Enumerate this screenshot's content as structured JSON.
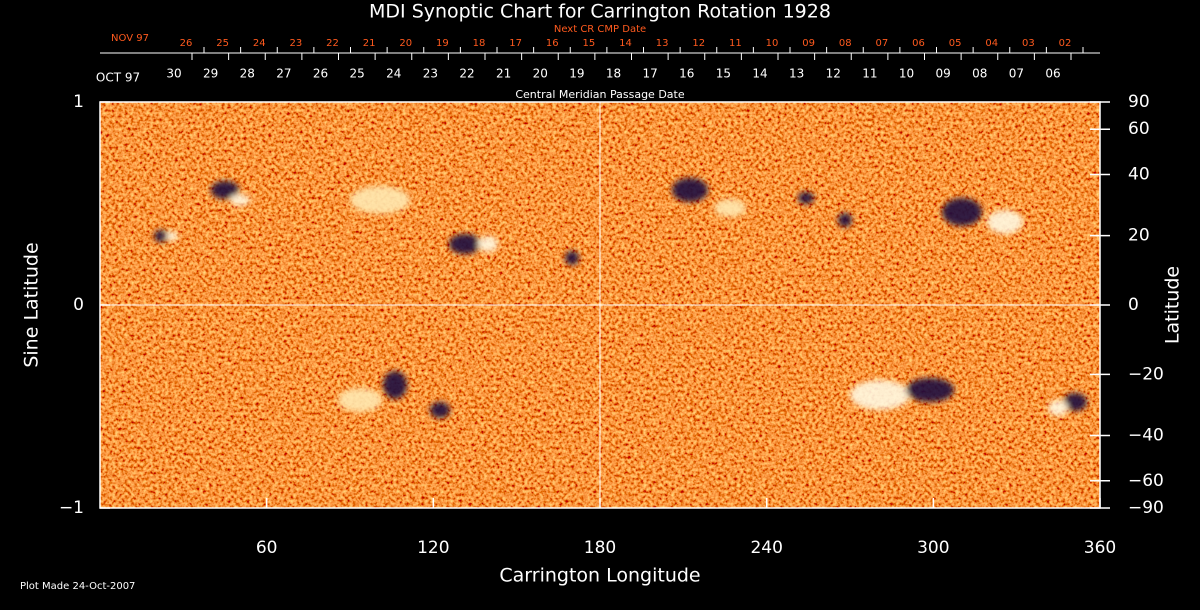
{
  "chart_data": {
    "type": "synoptic-map",
    "title": "MDI Synoptic Chart for Carrington Rotation 1928",
    "top_axis_label": "Next CR CMP Date",
    "top_axis_month": "NOV 97",
    "top_dates": [
      "26",
      "25",
      "24",
      "23",
      "22",
      "21",
      "20",
      "19",
      "18",
      "17",
      "16",
      "15",
      "14",
      "13",
      "12",
      "11",
      "10",
      "09",
      "08",
      "07",
      "06",
      "05",
      "04",
      "03",
      "02"
    ],
    "second_axis_label": "Central Meridian Passage Date",
    "second_axis_month": "OCT 97",
    "second_dates": [
      "30",
      "29",
      "28",
      "27",
      "26",
      "25",
      "24",
      "23",
      "22",
      "21",
      "20",
      "19",
      "18",
      "17",
      "16",
      "15",
      "14",
      "13",
      "12",
      "11",
      "10",
      "09",
      "08",
      "07",
      "06"
    ],
    "xlabel": "Carrington Longitude",
    "ylabel": "Sine Latitude",
    "y2label": "Latitude",
    "xlim": [
      0,
      360
    ],
    "xticks": [
      60,
      120,
      180,
      240,
      300,
      360
    ],
    "ylim": [
      -1,
      1
    ],
    "yticks": [
      {
        "value": -1,
        "label": "−1"
      },
      0,
      1
    ],
    "y2lim": [
      -90,
      90
    ],
    "y2ticks": [
      90,
      60,
      40,
      20,
      0,
      {
        "value": -20,
        "label": "−20"
      },
      {
        "value": -40,
        "label": "−40"
      },
      {
        "value": -60,
        "label": "−60"
      },
      {
        "value": -90,
        "label": "−90"
      }
    ],
    "footer": "Plot Made 24-Oct-2007"
  }
}
